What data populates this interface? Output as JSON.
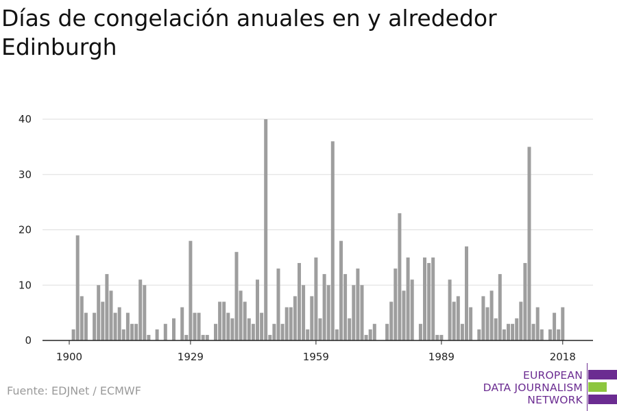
{
  "title": "Días de congelación anuales en y alrededor Edinburgh",
  "source": "Fuente: EDJNet / ECMWF",
  "logo": {
    "line1": "EUROPEAN",
    "line2": "DATA JOURNALISM",
    "line3": "NETWORK",
    "color_purple": "#6b2c91",
    "color_green": "#8dc63f"
  },
  "colors": {
    "bar": "#9e9e9e",
    "grid": "#dddddd",
    "axis": "#222222",
    "text": "#222222"
  },
  "chart_data": {
    "type": "bar",
    "title": "Días de congelación anuales en y alrededor Edinburgh",
    "xlabel": "",
    "ylabel": "",
    "x_start": 1900,
    "x_end": 2019,
    "x_ticks": [
      1900,
      1929,
      1959,
      1989,
      2018
    ],
    "y_ticks": [
      0,
      10,
      20,
      30,
      40
    ],
    "ylim": [
      0,
      40
    ],
    "grid": true,
    "categories": [
      1900,
      1901,
      1902,
      1903,
      1904,
      1905,
      1906,
      1907,
      1908,
      1909,
      1910,
      1911,
      1912,
      1913,
      1914,
      1915,
      1916,
      1917,
      1918,
      1919,
      1920,
      1921,
      1922,
      1923,
      1924,
      1925,
      1926,
      1927,
      1928,
      1929,
      1930,
      1931,
      1932,
      1933,
      1934,
      1935,
      1936,
      1937,
      1938,
      1939,
      1940,
      1941,
      1942,
      1943,
      1944,
      1945,
      1946,
      1947,
      1948,
      1949,
      1950,
      1951,
      1952,
      1953,
      1954,
      1955,
      1956,
      1957,
      1958,
      1959,
      1960,
      1961,
      1962,
      1963,
      1964,
      1965,
      1966,
      1967,
      1968,
      1969,
      1970,
      1971,
      1972,
      1973,
      1974,
      1975,
      1976,
      1977,
      1978,
      1979,
      1980,
      1981,
      1982,
      1983,
      1984,
      1985,
      1986,
      1987,
      1988,
      1989,
      1990,
      1991,
      1992,
      1993,
      1994,
      1995,
      1996,
      1997,
      1998,
      1999,
      2000,
      2001,
      2002,
      2003,
      2004,
      2005,
      2006,
      2007,
      2008,
      2009,
      2010,
      2011,
      2012,
      2013,
      2014,
      2015,
      2016,
      2017,
      2018,
      2019
    ],
    "values": [
      0,
      2,
      19,
      8,
      5,
      0,
      5,
      10,
      7,
      12,
      9,
      5,
      6,
      2,
      5,
      3,
      3,
      11,
      10,
      1,
      0,
      2,
      0,
      3,
      0,
      4,
      0,
      6,
      1,
      18,
      5,
      5,
      1,
      1,
      0,
      3,
      7,
      7,
      5,
      4,
      16,
      9,
      7,
      4,
      3,
      11,
      5,
      40,
      1,
      3,
      13,
      3,
      6,
      6,
      8,
      14,
      10,
      2,
      8,
      15,
      4,
      12,
      10,
      36,
      2,
      18,
      12,
      4,
      10,
      13,
      10,
      1,
      2,
      3,
      0,
      0,
      3,
      7,
      13,
      23,
      9,
      15,
      11,
      0,
      3,
      15,
      14,
      15,
      1,
      1,
      0,
      11,
      7,
      8,
      3,
      17,
      6,
      0,
      2,
      8,
      6,
      9,
      4,
      12,
      2,
      3,
      3,
      4,
      7,
      14,
      35,
      3,
      6,
      2,
      0,
      2,
      5,
      2,
      6,
      0
    ]
  }
}
